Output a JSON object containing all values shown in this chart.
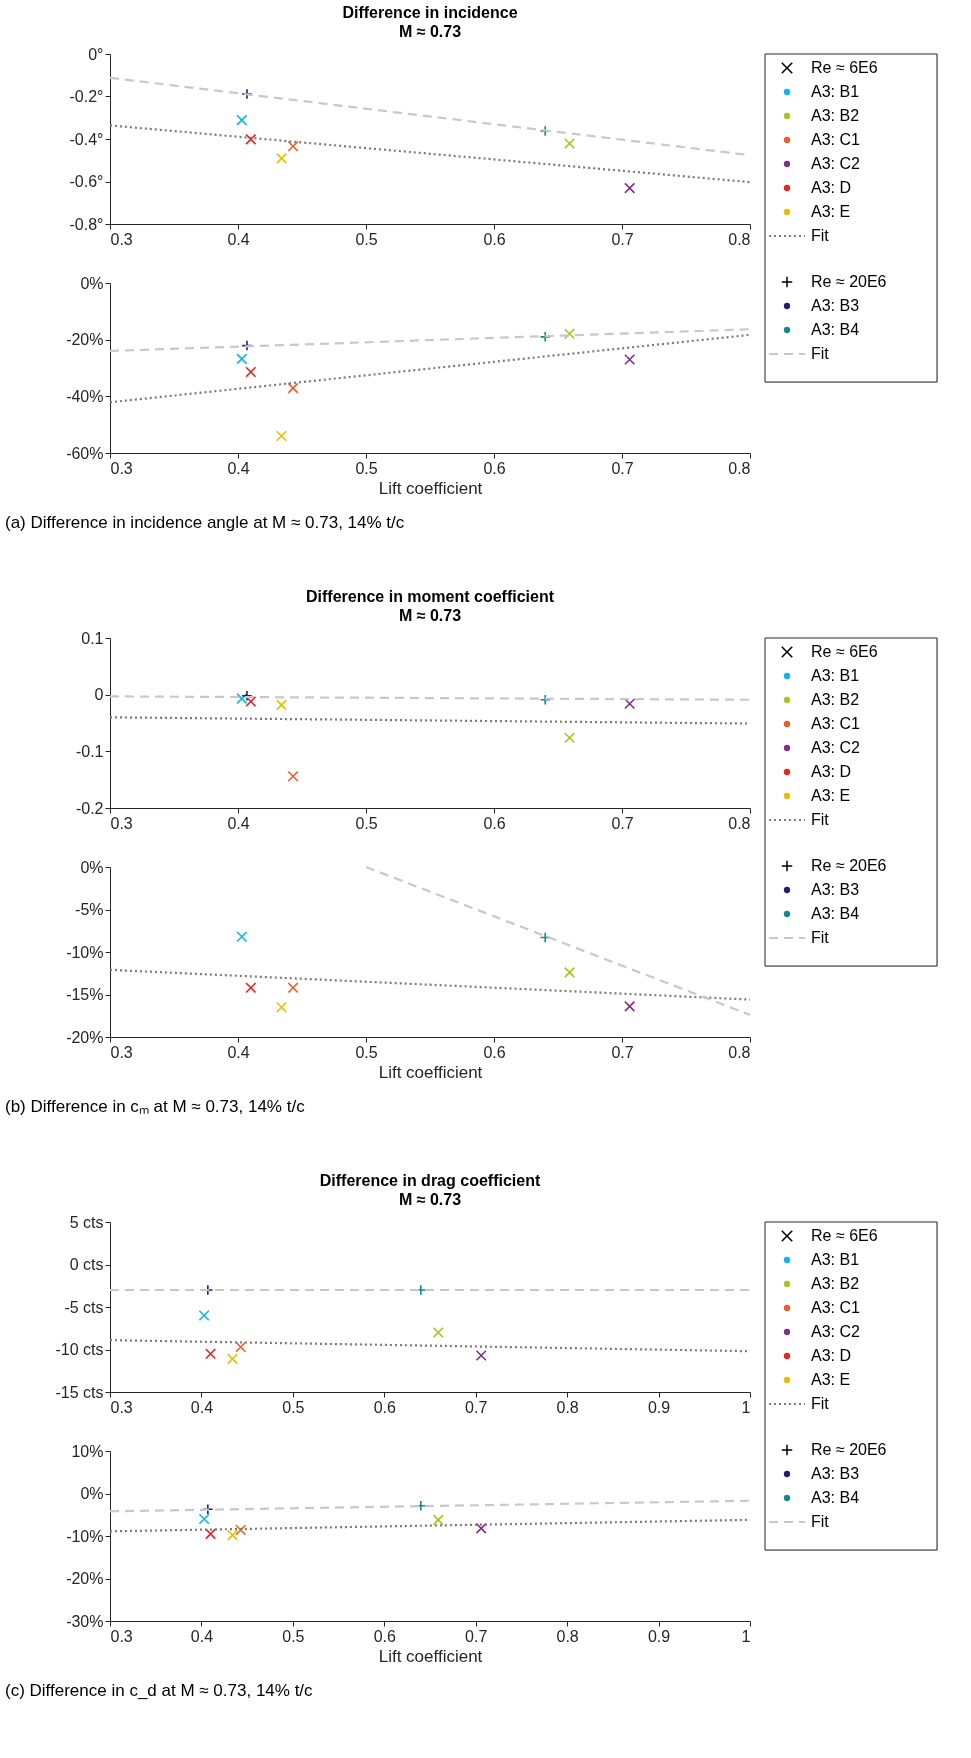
{
  "chart_data": [
    {
      "type": "scatter",
      "title": "Difference in incidence",
      "subtitle": "M ≈ 0.73",
      "legend": "right",
      "xlim": [
        0.3,
        0.8
      ],
      "xticks": [
        0.3,
        0.4,
        0.5,
        0.6,
        0.7,
        0.8
      ],
      "ylim": [
        -0.8,
        0
      ],
      "yticks": [
        {
          "value": -0.8,
          "label": "-0.8°"
        },
        {
          "value": -0.6,
          "label": "-0.6°"
        },
        {
          "value": -0.4,
          "label": "-0.4°"
        },
        {
          "value": -0.2,
          "label": "-0.2°"
        },
        {
          "value": 0,
          "label": "0°"
        }
      ],
      "series": [
        {
          "name": "Re ≈ 6E6",
          "color": "#000000",
          "marker": "x"
        },
        {
          "name": "A3: B1",
          "color": "#10b4e6",
          "marker": "x",
          "x": [
            0.403
          ],
          "values": [
            -0.311
          ]
        },
        {
          "name": "A3: B2",
          "color": "#a3c61c",
          "marker": "x",
          "x": [
            0.659
          ],
          "values": [
            -0.421
          ]
        },
        {
          "name": "A3: C1",
          "color": "#f05a28",
          "marker": "x",
          "x": [
            0.443
          ],
          "values": [
            -0.434
          ]
        },
        {
          "name": "A3: C2",
          "color": "#7e2f8e",
          "marker": "x",
          "x": [
            0.706
          ],
          "values": [
            -0.631
          ]
        },
        {
          "name": "A3: D",
          "color": "#e8231f",
          "marker": "x",
          "x": [
            0.41
          ],
          "values": [
            -0.402
          ]
        },
        {
          "name": "A3: E",
          "color": "#e6bf00",
          "marker": "x",
          "x": [
            0.434
          ],
          "values": [
            -0.491
          ]
        },
        {
          "name": "Fit",
          "type": "line",
          "line_style": "dotted",
          "color": "#7a7a7a",
          "x": [
            0.3,
            0.8
          ],
          "values": [
            -0.336,
            -0.603
          ]
        },
        {
          "name": "Re ≈ 20E6",
          "color": "#000000",
          "marker": "cross"
        },
        {
          "name": "A3: B3",
          "color": "#1f1f78",
          "marker": "cross",
          "x": [
            0.407
          ],
          "values": [
            -0.188
          ]
        },
        {
          "name": "A3: B4",
          "color": "#0f8a96",
          "marker": "cross",
          "x": [
            0.64
          ],
          "values": [
            -0.362
          ]
        },
        {
          "name": "Fit",
          "type": "line",
          "line_style": "dashed",
          "color": "#c8c8c8",
          "x": [
            0.3,
            0.8
          ],
          "values": [
            -0.112,
            -0.476
          ]
        }
      ]
    },
    {
      "type": "scatter",
      "xlabel": "Lift coefficient",
      "annotations": [
        "(a) Difference in incidence angle at M ≈ 0.73, 14% t/c"
      ],
      "xlim": [
        0.3,
        0.8
      ],
      "xticks": [
        0.3,
        0.4,
        0.5,
        0.6,
        0.7,
        0.8
      ],
      "ylim": [
        -60,
        0
      ],
      "yticks": [
        {
          "value": -60,
          "label": "-60%"
        },
        {
          "value": -40,
          "label": "-40%"
        },
        {
          "value": -20,
          "label": "-20%"
        },
        {
          "value": 0,
          "label": "0%"
        }
      ],
      "series": [
        {
          "color": "#10b4e6",
          "marker": "x",
          "x": [
            0.403
          ],
          "values": [
            -26.8
          ]
        },
        {
          "color": "#a3c61c",
          "marker": "x",
          "x": [
            0.659
          ],
          "values": [
            -17.9
          ]
        },
        {
          "color": "#f05a28",
          "marker": "x",
          "x": [
            0.443
          ],
          "values": [
            -37.1
          ]
        },
        {
          "color": "#7e2f8e",
          "marker": "x",
          "x": [
            0.706
          ],
          "values": [
            -27.0
          ]
        },
        {
          "color": "#e8231f",
          "marker": "x",
          "x": [
            0.41
          ],
          "values": [
            -31.4
          ]
        },
        {
          "color": "#e6bf00",
          "marker": "x",
          "x": [
            0.434
          ],
          "values": [
            -54.0
          ]
        },
        {
          "type": "line",
          "line_style": "dotted",
          "color": "#7a7a7a",
          "x": [
            0.3,
            0.8
          ],
          "values": [
            -42.1,
            -18.3
          ]
        },
        {
          "color": "#1f1f78",
          "marker": "cross",
          "x": [
            0.407
          ],
          "values": [
            -22.1
          ]
        },
        {
          "color": "#0f8a96",
          "marker": "cross",
          "x": [
            0.64
          ],
          "values": [
            -19.0
          ]
        },
        {
          "type": "line",
          "line_style": "dashed",
          "color": "#c8c8c8",
          "x": [
            0.3,
            0.8
          ],
          "values": [
            -24.0,
            -16.3
          ]
        }
      ]
    },
    {
      "type": "scatter",
      "title": "Difference in moment coefficient",
      "subtitle": "M ≈ 0.73",
      "legend": "right",
      "xlim": [
        0.3,
        0.8
      ],
      "xticks": [
        0.3,
        0.4,
        0.5,
        0.6,
        0.7,
        0.8
      ],
      "ylim": [
        -0.2,
        0.1
      ],
      "yticks": [
        -0.2,
        -0.1,
        0,
        0.1
      ],
      "series": [
        {
          "name": "Re ≈ 6E6",
          "color": "#000000",
          "marker": "x"
        },
        {
          "name": "A3: B1",
          "color": "#10b4e6",
          "marker": "x",
          "x": [
            0.403
          ],
          "values": [
            -0.007
          ]
        },
        {
          "name": "A3: B2",
          "color": "#a3c61c",
          "marker": "x",
          "x": [
            0.659
          ],
          "values": [
            -0.076
          ]
        },
        {
          "name": "A3: C1",
          "color": "#f05a28",
          "marker": "x",
          "x": [
            0.443
          ],
          "values": [
            -0.144
          ]
        },
        {
          "name": "A3: C2",
          "color": "#7e2f8e",
          "marker": "x",
          "x": [
            0.706
          ],
          "values": [
            -0.016
          ]
        },
        {
          "name": "A3: D",
          "color": "#e8231f",
          "marker": "x",
          "x": [
            0.41
          ],
          "values": [
            -0.012
          ]
        },
        {
          "name": "A3: E",
          "color": "#e6bf00",
          "marker": "x",
          "x": [
            0.434
          ],
          "values": [
            -0.018
          ]
        },
        {
          "name": "Fit",
          "type": "line",
          "line_style": "dotted",
          "color": "#7a7a7a",
          "x": [
            0.3,
            0.8
          ],
          "values": [
            -0.04,
            -0.051
          ]
        },
        {
          "name": "Re ≈ 20E6",
          "color": "#000000",
          "marker": "cross"
        },
        {
          "name": "A3: B3",
          "color": "#1f1f78",
          "marker": "cross",
          "x": [
            0.407
          ],
          "values": [
            -0.002
          ]
        },
        {
          "name": "A3: B4",
          "color": "#0f8a96",
          "marker": "cross",
          "x": [
            0.64
          ],
          "values": [
            -0.009
          ]
        },
        {
          "name": "Fit",
          "type": "line",
          "line_style": "dashed",
          "color": "#c8c8c8",
          "x": [
            0.3,
            0.8
          ],
          "values": [
            -0.003,
            -0.009
          ]
        }
      ]
    },
    {
      "type": "scatter",
      "xlabel": "Lift coefficient",
      "annotations": [
        "(b) Difference in cₘ at M ≈ 0.73, 14% t/c"
      ],
      "xlim": [
        0.3,
        0.8
      ],
      "xticks": [
        0.3,
        0.4,
        0.5,
        0.6,
        0.7,
        0.8
      ],
      "ylim": [
        -20,
        0
      ],
      "yticks": [
        {
          "value": -20,
          "label": "-20%"
        },
        {
          "value": -15,
          "label": "-15%"
        },
        {
          "value": -10,
          "label": "-10%"
        },
        {
          "value": -5,
          "label": "-5%"
        },
        {
          "value": 0,
          "label": "0%"
        }
      ],
      "series": [
        {
          "color": "#10b4e6",
          "marker": "x",
          "x": [
            0.403
          ],
          "values": [
            -8.2
          ]
        },
        {
          "color": "#a3c61c",
          "marker": "x",
          "x": [
            0.659
          ],
          "values": [
            -12.4
          ]
        },
        {
          "color": "#f05a28",
          "marker": "x",
          "x": [
            0.443
          ],
          "values": [
            -14.2
          ]
        },
        {
          "color": "#7e2f8e",
          "marker": "x",
          "x": [
            0.706
          ],
          "values": [
            -16.4
          ]
        },
        {
          "color": "#e8231f",
          "marker": "x",
          "x": [
            0.41
          ],
          "values": [
            -14.2
          ]
        },
        {
          "color": "#e6bf00",
          "marker": "x",
          "x": [
            0.434
          ],
          "values": [
            -16.5
          ]
        },
        {
          "type": "line",
          "line_style": "dotted",
          "color": "#7a7a7a",
          "x": [
            0.3,
            0.8
          ],
          "values": [
            -12.1,
            -15.6
          ]
        },
        {
          "color": "#0f8a96",
          "marker": "cross",
          "x": [
            0.64
          ],
          "values": [
            -8.3
          ]
        },
        {
          "type": "line",
          "line_style": "dashed",
          "color": "#c8c8c8",
          "x": [
            0.5,
            0.8
          ],
          "values": [
            0,
            -17.4
          ]
        }
      ]
    },
    {
      "type": "scatter",
      "title": "Difference in drag coefficient",
      "subtitle": "M ≈ 0.73",
      "legend": "right",
      "xlim": [
        0.3,
        1
      ],
      "xticks": [
        0.3,
        0.4,
        0.5,
        0.6,
        0.7,
        0.8,
        0.9,
        1
      ],
      "ylim": [
        -15,
        5
      ],
      "yticks": [
        {
          "value": -15,
          "label": "-15 cts"
        },
        {
          "value": -10,
          "label": "-10 cts"
        },
        {
          "value": -5,
          "label": "-5 cts"
        },
        {
          "value": 0,
          "label": "0 cts"
        },
        {
          "value": 5,
          "label": "5 cts"
        }
      ],
      "series": [
        {
          "name": "Re ≈ 6E6",
          "color": "#000000",
          "marker": "x"
        },
        {
          "name": "A3: B1",
          "color": "#10b4e6",
          "marker": "x",
          "x": [
            0.403
          ],
          "values": [
            -6.0
          ]
        },
        {
          "name": "A3: B2",
          "color": "#a3c61c",
          "marker": "x",
          "x": [
            0.659
          ],
          "values": [
            -8.0
          ]
        },
        {
          "name": "A3: C1",
          "color": "#f05a28",
          "marker": "x",
          "x": [
            0.443
          ],
          "values": [
            -9.7
          ]
        },
        {
          "name": "A3: C2",
          "color": "#7e2f8e",
          "marker": "x",
          "x": [
            0.706
          ],
          "values": [
            -10.7
          ]
        },
        {
          "name": "A3: D",
          "color": "#e8231f",
          "marker": "x",
          "x": [
            0.41
          ],
          "values": [
            -10.5
          ]
        },
        {
          "name": "A3: E",
          "color": "#e6bf00",
          "marker": "x",
          "x": [
            0.434
          ],
          "values": [
            -11.1
          ]
        },
        {
          "name": "Fit",
          "type": "line",
          "line_style": "dotted",
          "color": "#7a7a7a",
          "x": [
            0.3,
            1
          ],
          "values": [
            -8.9,
            -10.2
          ]
        },
        {
          "name": "Re ≈ 20E6",
          "color": "#000000",
          "marker": "cross"
        },
        {
          "name": "A3: B3",
          "color": "#1f1f78",
          "marker": "cross",
          "x": [
            0.407
          ],
          "values": [
            -3.0
          ]
        },
        {
          "name": "A3: B4",
          "color": "#0f8a96",
          "marker": "cross",
          "x": [
            0.64
          ],
          "values": [
            -3.0
          ]
        },
        {
          "name": "Fit",
          "type": "line",
          "line_style": "dashed",
          "color": "#c8c8c8",
          "x": [
            0.3,
            1
          ],
          "values": [
            -3.0,
            -3.0
          ]
        }
      ]
    },
    {
      "type": "scatter",
      "xlabel": "Lift coefficient",
      "annotations": [
        "(c) Difference in c_d at M ≈ 0.73, 14% t/c"
      ],
      "xlim": [
        0.3,
        1
      ],
      "xticks": [
        0.3,
        0.4,
        0.5,
        0.6,
        0.7,
        0.8,
        0.9,
        1
      ],
      "ylim": [
        -30,
        10
      ],
      "yticks": [
        {
          "value": -30,
          "label": "-30%"
        },
        {
          "value": -20,
          "label": "-20%"
        },
        {
          "value": -10,
          "label": "-10%"
        },
        {
          "value": 0,
          "label": "0%"
        },
        {
          "value": 10,
          "label": "10%"
        }
      ],
      "series": [
        {
          "color": "#10b4e6",
          "marker": "x",
          "x": [
            0.403
          ],
          "values": [
            -6.0
          ]
        },
        {
          "color": "#a3c61c",
          "marker": "x",
          "x": [
            0.659
          ],
          "values": [
            -6.2
          ]
        },
        {
          "color": "#f05a28",
          "marker": "x",
          "x": [
            0.443
          ],
          "values": [
            -8.6
          ]
        },
        {
          "color": "#7e2f8e",
          "marker": "x",
          "x": [
            0.706
          ],
          "values": [
            -8.2
          ]
        },
        {
          "color": "#e8231f",
          "marker": "x",
          "x": [
            0.41
          ],
          "values": [
            -9.5
          ]
        },
        {
          "color": "#e6bf00",
          "marker": "x",
          "x": [
            0.434
          ],
          "values": [
            -9.8
          ]
        },
        {
          "type": "line",
          "line_style": "dotted",
          "color": "#7a7a7a",
          "x": [
            0.3,
            1
          ],
          "values": [
            -8.9,
            -6.2
          ]
        },
        {
          "color": "#1f1f78",
          "marker": "cross",
          "x": [
            0.407
          ],
          "values": [
            -3.7
          ]
        },
        {
          "color": "#0f8a96",
          "marker": "cross",
          "x": [
            0.64
          ],
          "values": [
            -2.9
          ]
        },
        {
          "type": "line",
          "line_style": "dashed",
          "color": "#c8c8c8",
          "x": [
            0.3,
            1
          ],
          "values": [
            -4.2,
            -1.7
          ]
        }
      ]
    }
  ]
}
